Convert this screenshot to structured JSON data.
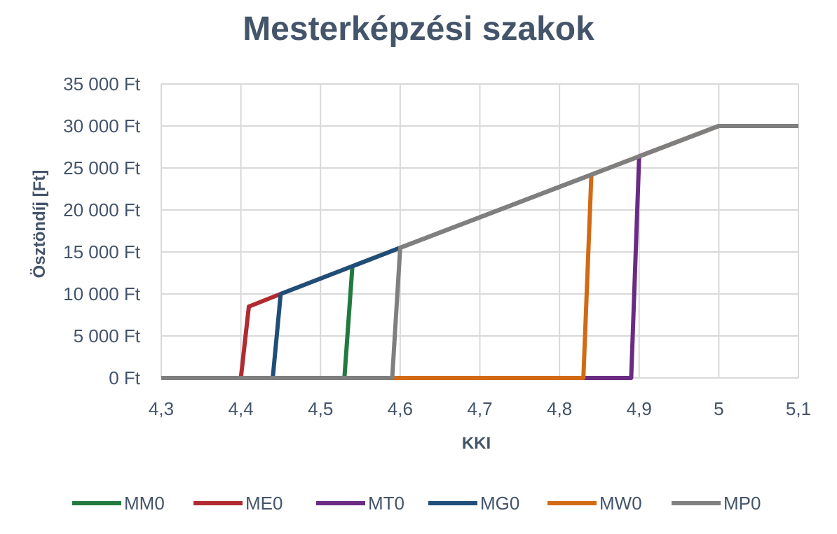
{
  "chart_data": {
    "type": "line",
    "title": "Mesterképzési szakok",
    "xlabel": "KKI",
    "ylabel": "Ösztöndíj [Ft]",
    "xlim": [
      4.3,
      5.1
    ],
    "ylim": [
      0,
      35000
    ],
    "x_ticks": [
      4.3,
      4.4,
      4.5,
      4.6,
      4.7,
      4.8,
      4.9,
      5.0,
      5.1
    ],
    "x_tick_labels": [
      "4,3",
      "4,4",
      "4,5",
      "4,6",
      "4,7",
      "4,8",
      "4,9",
      "5",
      "5,1"
    ],
    "y_ticks": [
      0,
      5000,
      10000,
      15000,
      20000,
      25000,
      30000,
      35000
    ],
    "y_tick_labels": [
      "0 Ft",
      "5 000 Ft",
      "10 000 Ft",
      "15 000 Ft",
      "20 000 Ft",
      "25 000 Ft",
      "30 000 Ft",
      "35 000 Ft"
    ],
    "grid": true,
    "legend_position": "bottom",
    "series": [
      {
        "name": "MM0",
        "color": "#217a3e",
        "points": [
          [
            4.3,
            0
          ],
          [
            4.53,
            0
          ],
          [
            4.54,
            13300
          ],
          [
            4.6,
            15500
          ],
          [
            5.0,
            30000
          ],
          [
            5.1,
            30000
          ]
        ]
      },
      {
        "name": "ME0",
        "color": "#b02a2f",
        "points": [
          [
            4.3,
            0
          ],
          [
            4.4,
            0
          ],
          [
            4.41,
            8500
          ],
          [
            4.45,
            10000
          ],
          [
            4.6,
            15500
          ],
          [
            5.0,
            30000
          ],
          [
            5.1,
            30000
          ]
        ]
      },
      {
        "name": "MT0",
        "color": "#6b2b84",
        "points": [
          [
            4.3,
            0
          ],
          [
            4.89,
            0
          ],
          [
            4.9,
            26400
          ],
          [
            5.0,
            30000
          ],
          [
            5.1,
            30000
          ]
        ]
      },
      {
        "name": "MG0",
        "color": "#1f4e79",
        "points": [
          [
            4.3,
            0
          ],
          [
            4.44,
            0
          ],
          [
            4.45,
            10000
          ],
          [
            4.6,
            15500
          ],
          [
            5.0,
            30000
          ],
          [
            5.1,
            30000
          ]
        ]
      },
      {
        "name": "MW0",
        "color": "#d26a15",
        "points": [
          [
            4.3,
            0
          ],
          [
            4.83,
            0
          ],
          [
            4.84,
            24200
          ],
          [
            5.0,
            30000
          ],
          [
            5.1,
            30000
          ]
        ]
      },
      {
        "name": "MP0",
        "color": "#7f7f7f",
        "points": [
          [
            4.3,
            0
          ],
          [
            4.59,
            0
          ],
          [
            4.6,
            15500
          ],
          [
            5.0,
            30000
          ],
          [
            5.1,
            30000
          ]
        ]
      }
    ]
  }
}
